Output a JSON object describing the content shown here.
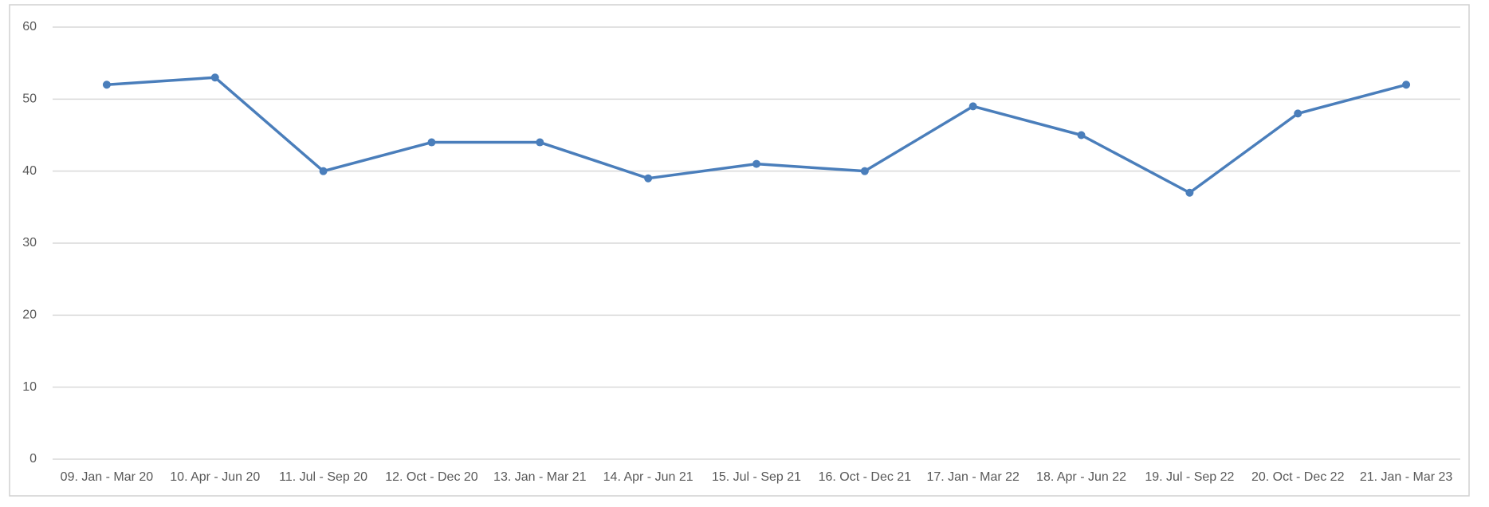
{
  "chart_data": {
    "type": "line",
    "categories": [
      "09. Jan - Mar 20",
      "10. Apr - Jun 20",
      "11. Jul - Sep 20",
      "12. Oct - Dec 20",
      "13. Jan - Mar 21",
      "14. Apr - Jun 21",
      "15. Jul - Sep 21",
      "16. Oct - Dec 21",
      "17. Jan - Mar 22",
      "18. Apr - Jun 22",
      "19. Jul - Sep 22",
      "20. Oct - Dec 22",
      "21. Jan - Mar 23"
    ],
    "series": [
      {
        "color": "#4a7ebb",
        "values": [
          52,
          53,
          40,
          44,
          44,
          39,
          41,
          40,
          49,
          45,
          37,
          48,
          52
        ]
      }
    ],
    "ylim": [
      0,
      60
    ],
    "yticks": [
      0,
      10,
      20,
      30,
      40,
      50,
      60
    ],
    "grid": true
  }
}
